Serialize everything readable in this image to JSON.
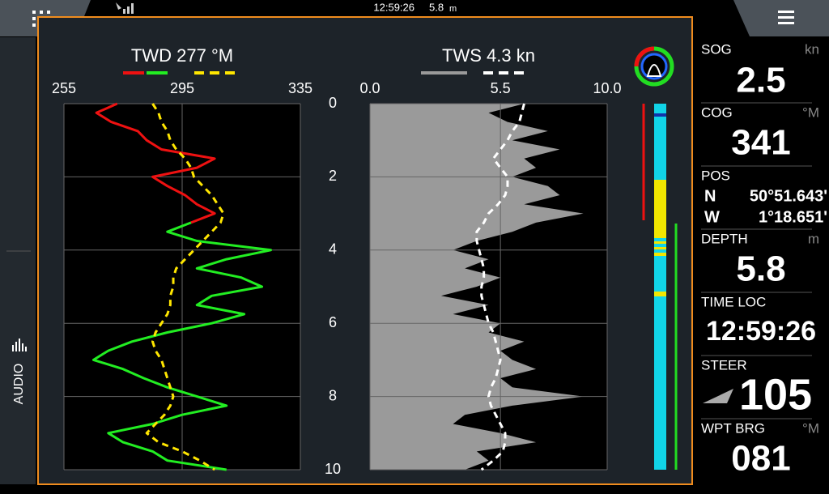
{
  "status_bar": {
    "time": "12:59:26",
    "depth": "5.8",
    "depth_unit": "m"
  },
  "sidebar": {
    "label": "AUDIO"
  },
  "chart_data": [
    {
      "type": "line",
      "title": "TWD 277 °M",
      "orientation": "vertical",
      "x": [
        0,
        0.25,
        0.5,
        0.75,
        1,
        1.25,
        1.5,
        1.75,
        2,
        2.25,
        2.5,
        2.75,
        3,
        3.25,
        3.5,
        3.75,
        4,
        4.25,
        4.5,
        4.75,
        5,
        5.25,
        5.5,
        5.75,
        6,
        6.25,
        6.5,
        6.75,
        7,
        7.25,
        7.5,
        7.75,
        8,
        8.25,
        8.5,
        8.75,
        9,
        9.25,
        9.5,
        9.75,
        10
      ],
      "xlim": [
        0,
        10
      ],
      "xticks": [
        0,
        2,
        4,
        6,
        8,
        10
      ],
      "ylim": [
        255,
        335
      ],
      "yticks": [
        255,
        295,
        335
      ],
      "grid": true,
      "series": [
        {
          "color": "#ee1111",
          "values": [
            273,
            266,
            271,
            280,
            283,
            288,
            306,
            300,
            285,
            290,
            296,
            300,
            306,
            298,
            null,
            null,
            null,
            null,
            null,
            null,
            null,
            null,
            null,
            null,
            null,
            null,
            null,
            null,
            null,
            null,
            null,
            null,
            null,
            null,
            null,
            null,
            null,
            null,
            null,
            null,
            null
          ]
        },
        {
          "color": "#22ee22",
          "values": [
            null,
            null,
            null,
            null,
            null,
            null,
            null,
            null,
            null,
            null,
            null,
            null,
            null,
            298,
            290,
            300,
            325,
            310,
            300,
            315,
            322,
            305,
            300,
            316,
            305,
            290,
            278,
            270,
            265,
            275,
            282,
            290,
            300,
            310,
            295,
            285,
            270,
            275,
            285,
            290,
            310
          ]
        },
        {
          "color": "#ffe600",
          "dash": true,
          "values": [
            285,
            287,
            288,
            290,
            291,
            293,
            296,
            298,
            299,
            302,
            305,
            307,
            309,
            308,
            305,
            302,
            299,
            296,
            293,
            292,
            292,
            291,
            291,
            290,
            288,
            286,
            285,
            286,
            288,
            289,
            290,
            291,
            292,
            291,
            289,
            286,
            283,
            287,
            295,
            301,
            306
          ]
        }
      ]
    },
    {
      "type": "line",
      "title": "TWS 4.3 kn",
      "orientation": "vertical",
      "x": [
        0,
        0.25,
        0.5,
        0.75,
        1,
        1.25,
        1.5,
        1.75,
        2,
        2.25,
        2.5,
        2.75,
        3,
        3.25,
        3.5,
        3.75,
        4,
        4.25,
        4.5,
        4.75,
        5,
        5.25,
        5.5,
        5.75,
        6,
        6.25,
        6.5,
        6.75,
        7,
        7.25,
        7.5,
        7.75,
        8,
        8.25,
        8.5,
        8.75,
        9,
        9.25,
        9.5,
        9.75,
        10
      ],
      "xlim": [
        0,
        10
      ],
      "xticks": [
        0,
        2,
        4,
        6,
        8,
        10
      ],
      "ylim": [
        0,
        10
      ],
      "yticks": [
        {
          "value": 0,
          "label": "0.0"
        },
        5.5,
        {
          "value": 10,
          "label": "10.0"
        }
      ],
      "grid": true,
      "series": [
        {
          "color": "#9a9a9a",
          "fill": true,
          "values": [
            6.5,
            5.0,
            5.8,
            7.5,
            6.0,
            8.0,
            6.5,
            7.0,
            6.0,
            7.5,
            8.0,
            6.5,
            9.0,
            7.0,
            6.0,
            4.5,
            3.5,
            5.0,
            4.0,
            5.5,
            4.5,
            3.0,
            5.0,
            3.5,
            5.5,
            5.0,
            6.5,
            5.5,
            6.0,
            7.0,
            5.5,
            6.0,
            9.0,
            6.0,
            4.0,
            3.5,
            5.5,
            7.0,
            4.5,
            5.0,
            4.0
          ]
        },
        {
          "color": "#ffffff",
          "dash": true,
          "values": [
            6.5,
            6.4,
            6.3,
            6.0,
            5.8,
            5.5,
            5.2,
            5.5,
            5.8,
            5.8,
            5.7,
            5.4,
            5.0,
            4.8,
            4.5,
            4.5,
            4.6,
            4.7,
            4.8,
            4.8,
            4.7,
            4.7,
            4.8,
            4.9,
            5.0,
            5.2,
            5.3,
            5.4,
            5.5,
            5.4,
            5.3,
            5.1,
            5.0,
            5.1,
            5.3,
            5.5,
            5.7,
            5.7,
            5.6,
            5.2,
            4.7
          ]
        }
      ]
    }
  ],
  "data_panel": [
    {
      "label": "SOG",
      "unit": "kn",
      "value": "2.5"
    },
    {
      "label": "COG",
      "unit": "°M",
      "value": "341"
    },
    {
      "label": "POS",
      "lines": [
        [
          "N",
          "50°51.643'"
        ],
        [
          "W",
          "1°18.651'"
        ]
      ]
    },
    {
      "label": "DEPTH",
      "unit": "m",
      "value": "5.8"
    },
    {
      "label": "TIME LOC",
      "value": "12:59:26"
    },
    {
      "label": "STEER",
      "value": "105"
    },
    {
      "label": "WPT BRG",
      "unit": "°M",
      "value": "081"
    }
  ]
}
